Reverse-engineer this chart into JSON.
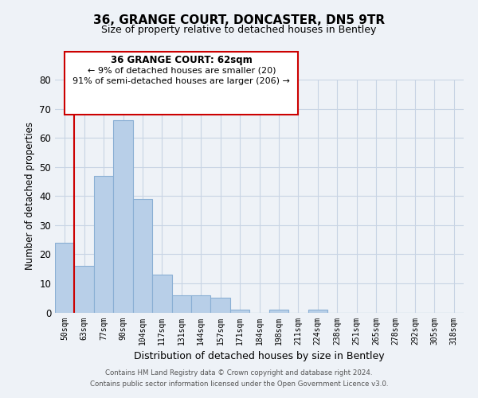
{
  "title": "36, GRANGE COURT, DONCASTER, DN5 9TR",
  "subtitle": "Size of property relative to detached houses in Bentley",
  "xlabel": "Distribution of detached houses by size in Bentley",
  "ylabel": "Number of detached properties",
  "bin_labels": [
    "50sqm",
    "63sqm",
    "77sqm",
    "90sqm",
    "104sqm",
    "117sqm",
    "131sqm",
    "144sqm",
    "157sqm",
    "171sqm",
    "184sqm",
    "198sqm",
    "211sqm",
    "224sqm",
    "238sqm",
    "251sqm",
    "265sqm",
    "278sqm",
    "292sqm",
    "305sqm",
    "318sqm"
  ],
  "bar_heights": [
    24,
    16,
    47,
    66,
    39,
    13,
    6,
    6,
    5,
    1,
    0,
    1,
    0,
    1,
    0,
    0,
    0,
    0,
    0,
    0,
    0
  ],
  "bar_color": "#b8cfe8",
  "bar_edge_color": "#8aafd4",
  "highlight_color": "#cc0000",
  "ylim": [
    0,
    80
  ],
  "yticks": [
    0,
    10,
    20,
    30,
    40,
    50,
    60,
    70,
    80
  ],
  "annotation_title": "36 GRANGE COURT: 62sqm",
  "annotation_line1": "← 9% of detached houses are smaller (20)",
  "annotation_line2": "91% of semi-detached houses are larger (206) →",
  "annotation_box_color": "#ffffff",
  "annotation_box_edge": "#cc0000",
  "footer_line1": "Contains HM Land Registry data © Crown copyright and database right 2024.",
  "footer_line2": "Contains public sector information licensed under the Open Government Licence v3.0.",
  "background_color": "#eef2f7",
  "plot_background": "#eef2f7",
  "grid_color": "#c8d4e4",
  "bar_width": 1.0,
  "red_line_x": 1
}
